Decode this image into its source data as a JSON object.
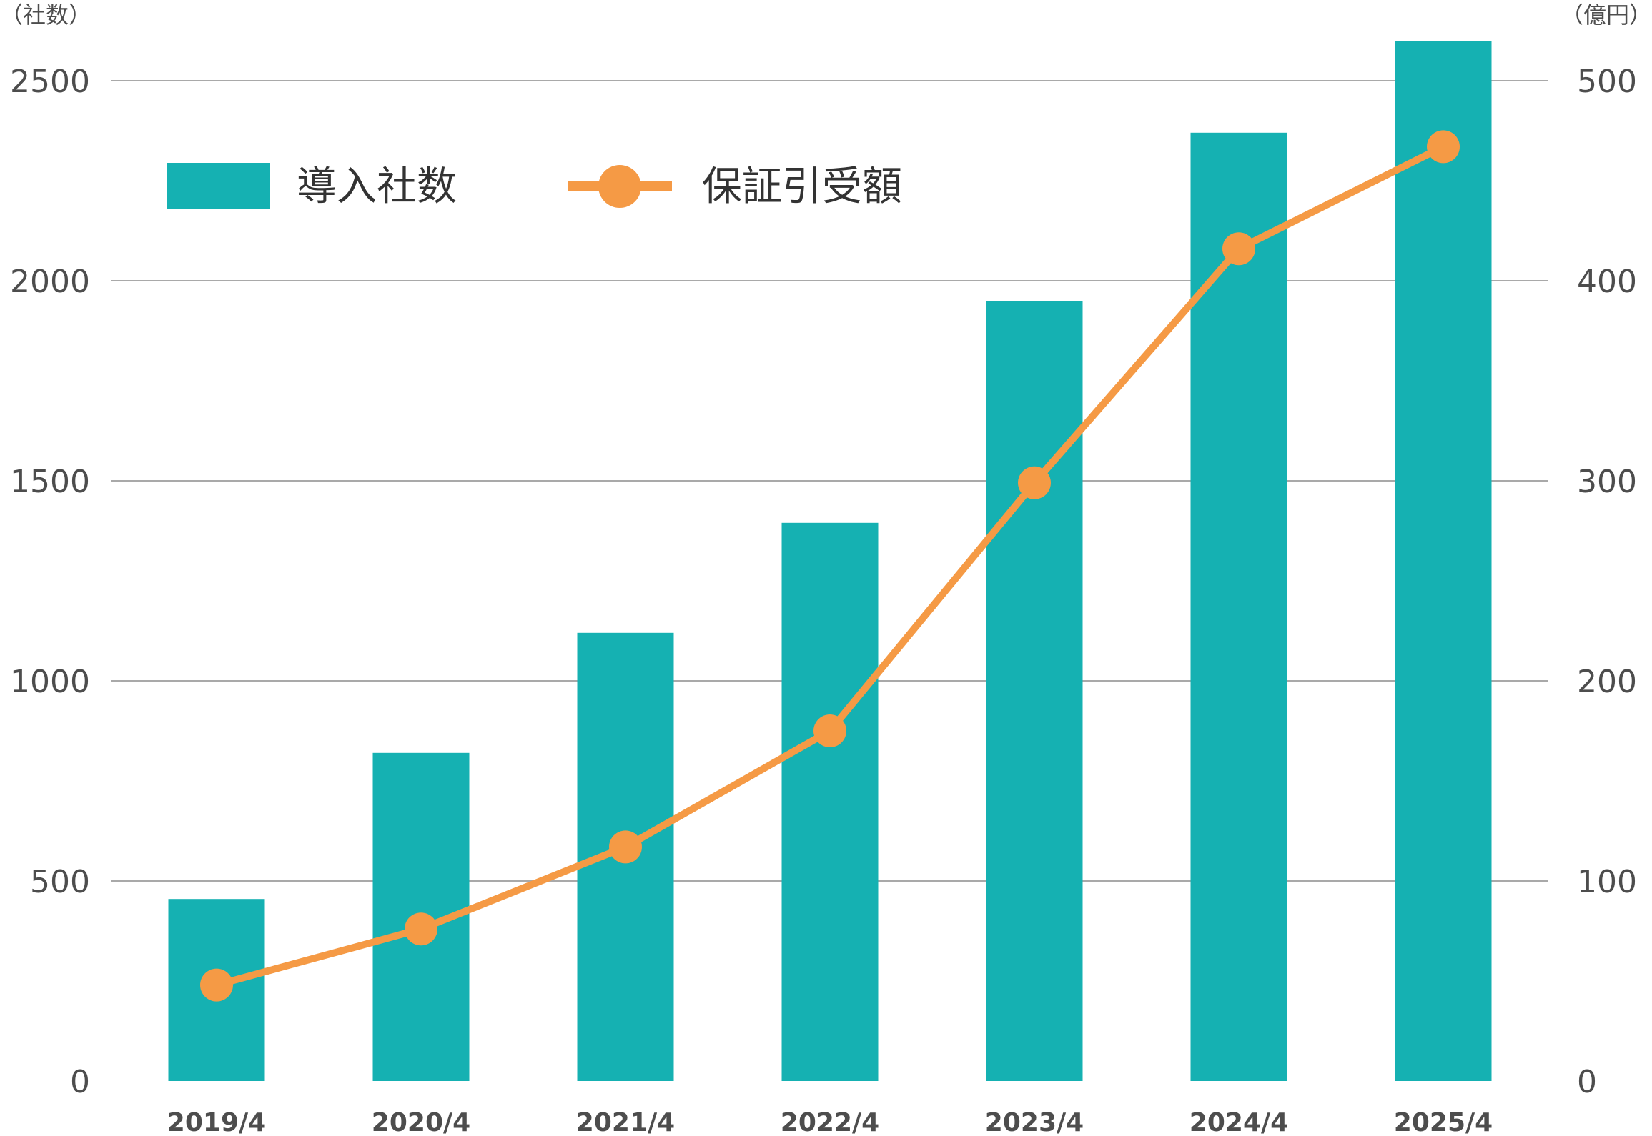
{
  "chart_data": {
    "type": "bar+line",
    "categories": [
      "2019/4",
      "2020/4",
      "2021/4",
      "2022/4",
      "2023/4",
      "2024/4",
      "2025/4"
    ],
    "series": [
      {
        "name": "導入社数",
        "type": "bar",
        "axis": "left",
        "color": "#15b1b2",
        "values": [
          455,
          820,
          1120,
          1395,
          1950,
          2370,
          2600
        ]
      },
      {
        "name": "保証引受額",
        "type": "line",
        "axis": "right",
        "color": "#f59a45",
        "values": [
          48,
          76,
          117,
          175,
          299,
          416,
          467
        ]
      }
    ],
    "y_left": {
      "label": "（社数）",
      "ylim": [
        0,
        2500
      ],
      "ticks": [
        0,
        500,
        1000,
        1500,
        2000,
        2500
      ]
    },
    "y_right": {
      "label": "（億円）",
      "ylim": [
        0,
        500
      ],
      "ticks": [
        0,
        100,
        200,
        300,
        400,
        500
      ]
    },
    "grid": true,
    "legend": "top-left"
  }
}
